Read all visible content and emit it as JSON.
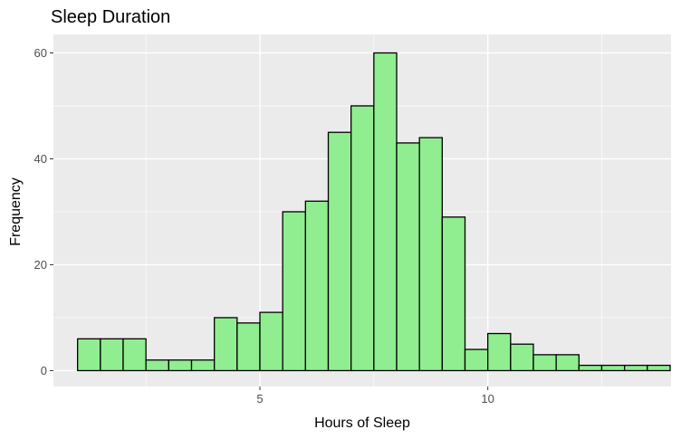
{
  "chart_data": {
    "type": "bar",
    "title": "Sleep Duration",
    "xlabel": "Hours of Sleep",
    "ylabel": "Frequency",
    "xlim": [
      0.47,
      14.02
    ],
    "ylim": [
      -3,
      63.5
    ],
    "x_ticks": [
      5,
      10
    ],
    "y_ticks": [
      0,
      20,
      40,
      60
    ],
    "bin_width": 0.5,
    "bins_start": 1.0,
    "values": [
      6,
      6,
      6,
      2,
      2,
      2,
      10,
      9,
      11,
      30,
      32,
      45,
      50,
      60,
      43,
      44,
      29,
      4,
      7,
      5,
      3,
      3,
      1,
      1,
      1,
      1
    ],
    "bar_fill": "#90ee90",
    "bar_outline": "#000000",
    "panel_background": "#ebebeb",
    "grid": true
  }
}
